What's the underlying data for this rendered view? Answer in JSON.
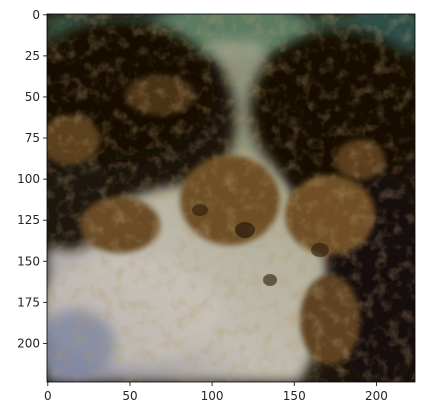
{
  "chart_data": {
    "type": "heatmap",
    "x_tick_labels": [
      "0",
      "50",
      "100",
      "150",
      "200"
    ],
    "y_tick_labels": [
      "0",
      "25",
      "50",
      "75",
      "100",
      "125",
      "150",
      "175",
      "200"
    ],
    "x_ticks": [
      0,
      50,
      100,
      150,
      200
    ],
    "y_ticks": [
      0,
      25,
      50,
      75,
      100,
      125,
      150,
      175,
      200
    ],
    "xlim": [
      -0.5,
      223.5
    ],
    "ylim": [
      223.5,
      -0.5
    ],
    "grid": false,
    "image_description": "underwater photo: dark rocks with brown algae over pale sandy seabed",
    "colors": {
      "dark_rock": "#1a1208",
      "teal_top": "#4a6b55",
      "algae_brown": "#7a5a30",
      "sand_light": "#b8b8b0",
      "sand_blue": "#8890a0"
    }
  }
}
